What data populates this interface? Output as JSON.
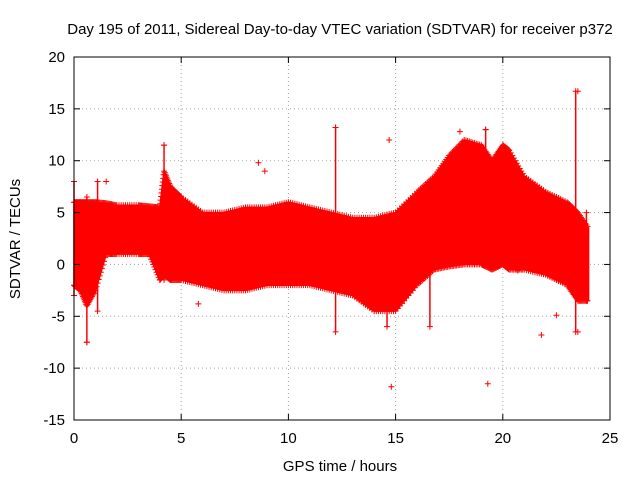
{
  "chart_data": {
    "type": "scatter",
    "title": "Day 195 of 2011, Sidereal Day-to-day VTEC variation (SDTVAR) for receiver p372",
    "xlabel": "GPS time / hours",
    "ylabel": "SDTVAR / TECUs",
    "xlim": [
      0,
      25
    ],
    "ylim": [
      -15,
      20
    ],
    "x_ticks": [
      "0",
      "5",
      "10",
      "15",
      "20",
      "25"
    ],
    "y_ticks": [
      "-15",
      "-10",
      "-5",
      "0",
      "5",
      "10",
      "15",
      "20"
    ],
    "grid": true,
    "marker": "+",
    "color": "#ff0000",
    "envelope": {
      "x": [
        0.0,
        0.3,
        0.6,
        1.0,
        1.5,
        2.0,
        3.0,
        3.5,
        4.0,
        4.2,
        4.5,
        5.0,
        6.0,
        7.0,
        8.0,
        9.0,
        10.0,
        11.0,
        12.0,
        13.0,
        14.0,
        15.0,
        16.0,
        16.8,
        17.5,
        18.2,
        19.0,
        19.5,
        20.0,
        20.3,
        21.0,
        22.0,
        23.0,
        23.5,
        24.0
      ],
      "upper": [
        6.0,
        6.0,
        6.0,
        6.0,
        5.9,
        5.7,
        5.7,
        5.6,
        5.5,
        9.0,
        7.5,
        6.5,
        5.0,
        5.0,
        5.5,
        5.5,
        6.0,
        5.5,
        5.0,
        4.5,
        4.5,
        5.0,
        7.0,
        8.5,
        10.5,
        12.0,
        11.5,
        10.0,
        11.5,
        11.0,
        8.5,
        7.0,
        6.0,
        5.0,
        3.5
      ],
      "lower": [
        -2.0,
        -2.5,
        -4.0,
        -2.5,
        1.0,
        1.0,
        1.0,
        1.0,
        -1.5,
        -1.0,
        -1.5,
        -1.5,
        -2.0,
        -2.5,
        -2.5,
        -2.0,
        -2.0,
        -2.0,
        -2.5,
        -3.0,
        -4.5,
        -4.5,
        -2.0,
        -0.5,
        -0.2,
        0.0,
        0.0,
        -0.5,
        0.0,
        -0.5,
        -0.5,
        -1.0,
        -2.0,
        -3.5,
        -3.5
      ]
    },
    "outliers": [
      {
        "x": 0.0,
        "y": 8.0
      },
      {
        "x": 0.6,
        "y": -7.5
      },
      {
        "x": 1.5,
        "y": 8.0
      },
      {
        "x": 4.2,
        "y": 11.5
      },
      {
        "x": 5.8,
        "y": -3.8
      },
      {
        "x": 8.6,
        "y": 9.8
      },
      {
        "x": 8.9,
        "y": 9.0
      },
      {
        "x": 12.2,
        "y": 13.2
      },
      {
        "x": 14.7,
        "y": 12.0
      },
      {
        "x": 14.8,
        "y": -11.8
      },
      {
        "x": 18.0,
        "y": 12.8
      },
      {
        "x": 19.2,
        "y": 13.0
      },
      {
        "x": 19.3,
        "y": -11.5
      },
      {
        "x": 20.7,
        "y": -0.6
      },
      {
        "x": 21.8,
        "y": -6.8
      },
      {
        "x": 22.5,
        "y": -4.9
      },
      {
        "x": 23.5,
        "y": -6.5
      },
      {
        "x": 23.5,
        "y": 16.7
      }
    ],
    "spikes": [
      {
        "x": 0.0,
        "y0": -3.0,
        "y1": 8.0
      },
      {
        "x": 0.6,
        "y0": -7.5,
        "y1": 6.5
      },
      {
        "x": 1.1,
        "y0": -4.5,
        "y1": 8.0
      },
      {
        "x": 4.2,
        "y0": -1.5,
        "y1": 11.5
      },
      {
        "x": 12.2,
        "y0": -6.5,
        "y1": 13.2
      },
      {
        "x": 14.6,
        "y0": -6.0,
        "y1": 4.5
      },
      {
        "x": 16.6,
        "y0": -6.0,
        "y1": 2.0
      },
      {
        "x": 19.2,
        "y0": 3.0,
        "y1": 13.0
      },
      {
        "x": 23.4,
        "y0": -6.5,
        "y1": 16.7
      },
      {
        "x": 23.9,
        "y0": -3.5,
        "y1": 5.0
      }
    ]
  }
}
